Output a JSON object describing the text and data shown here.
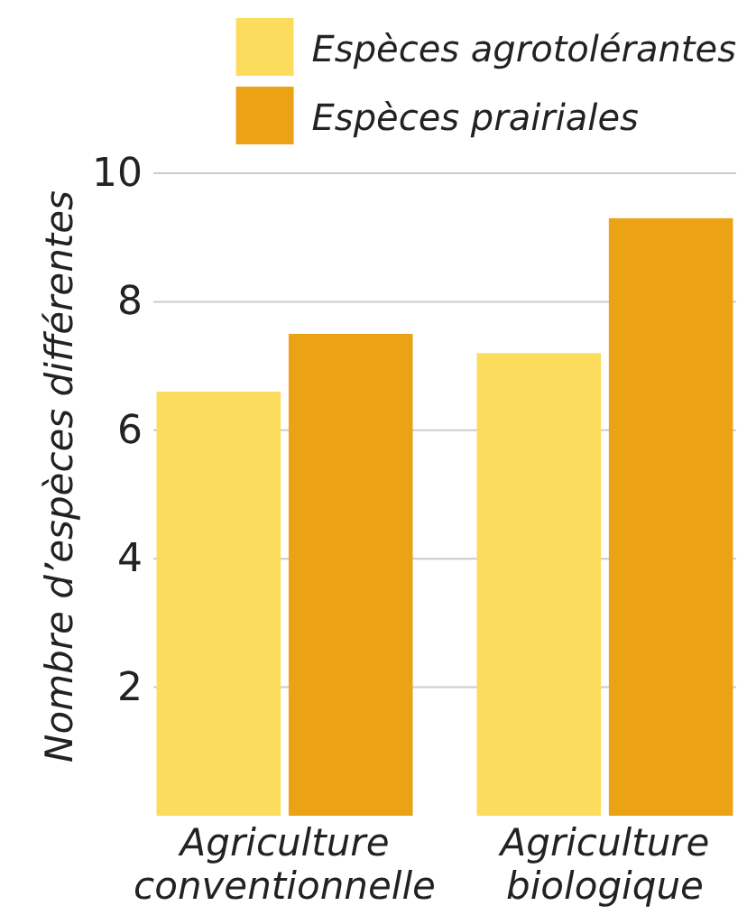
{
  "chart_data": {
    "type": "bar",
    "ylabel": "Nombre d’espèces différentes",
    "categories": [
      "Agriculture conventionnelle",
      "Agriculture biologique"
    ],
    "series": [
      {
        "name": "Espèces agrotolérantes",
        "color": "#fcdc5c",
        "values": [
          6.6,
          7.2
        ]
      },
      {
        "name": "Espèces prairiales",
        "color": "#eba214",
        "values": [
          7.5,
          9.3
        ]
      }
    ],
    "ylim": [
      0,
      10
    ],
    "yticks": [
      2,
      4,
      6,
      8,
      10
    ],
    "grid": "y",
    "legend": "top right"
  }
}
